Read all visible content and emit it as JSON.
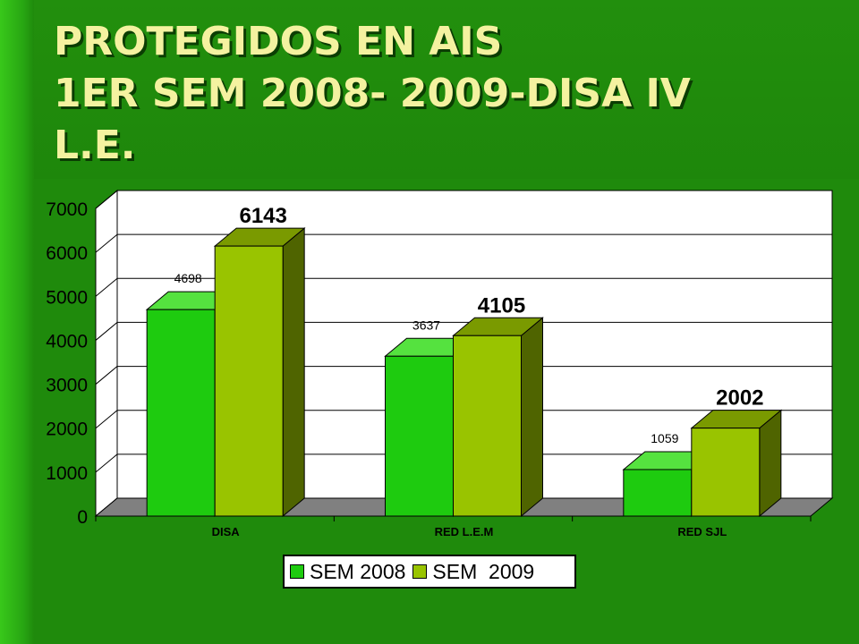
{
  "title": "PROTEGIDOS EN AIS\n 1ER SEM 2008- 2009-DISA IV\nL.E.",
  "colors": {
    "series_2008": "#1ecb0f",
    "series_2008_side": "#10910a",
    "series_2008_top": "#55e23f",
    "series_2009": "#99c400",
    "series_2009_side": "#4f6400",
    "series_2009_top": "#7a9a00",
    "plot_wall": "#ffffff",
    "floor": "#808080"
  },
  "chart_data": {
    "type": "bar",
    "categories": [
      "DISA",
      "RED L.E.M",
      "RED SJL"
    ],
    "series": [
      {
        "name": "SEM 2008",
        "values": [
          4698,
          3637,
          1059
        ]
      },
      {
        "name": "SEM  2009",
        "values": [
          6143,
          4105,
          2002
        ]
      }
    ],
    "ylim": [
      0,
      7000
    ],
    "yticks": [
      "0",
      "1000",
      "2000",
      "3000",
      "4000",
      "5000",
      "6000",
      "7000"
    ],
    "grid": true,
    "legend": "bottom"
  }
}
